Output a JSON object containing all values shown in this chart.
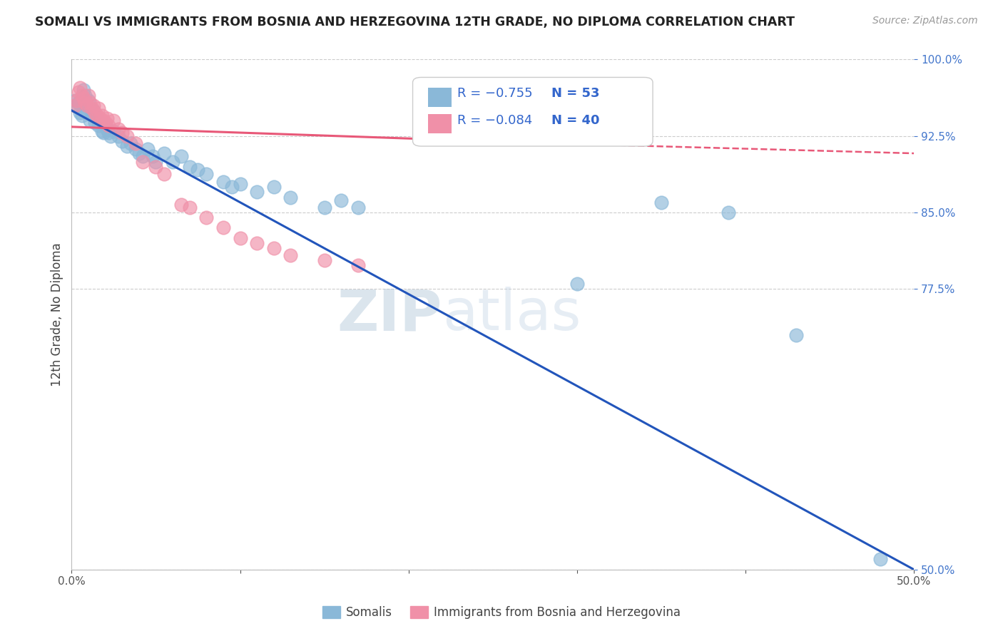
{
  "title": "SOMALI VS IMMIGRANTS FROM BOSNIA AND HERZEGOVINA 12TH GRADE, NO DIPLOMA CORRELATION CHART",
  "source": "Source: ZipAtlas.com",
  "ylabel": "12th Grade, No Diploma",
  "xlim": [
    0.0,
    0.5
  ],
  "ylim": [
    0.5,
    1.0
  ],
  "xticks": [
    0.0,
    0.1,
    0.2,
    0.3,
    0.4,
    0.5
  ],
  "yticks": [
    0.5,
    0.775,
    0.85,
    0.925,
    1.0
  ],
  "somali_line": [
    0.0,
    0.95,
    0.5,
    0.5
  ],
  "bosnia_line_solid": [
    0.0,
    0.934,
    0.28,
    0.918
  ],
  "bosnia_line_dash": [
    0.28,
    0.918,
    0.5,
    0.908
  ],
  "somali_scatter_x": [
    0.002,
    0.003,
    0.004,
    0.005,
    0.006,
    0.007,
    0.007,
    0.008,
    0.009,
    0.01,
    0.011,
    0.012,
    0.013,
    0.014,
    0.015,
    0.016,
    0.018,
    0.019,
    0.02,
    0.021,
    0.022,
    0.023,
    0.025,
    0.028,
    0.03,
    0.033,
    0.035,
    0.038,
    0.04,
    0.042,
    0.045,
    0.048,
    0.05,
    0.055,
    0.06,
    0.065,
    0.07,
    0.075,
    0.08,
    0.09,
    0.095,
    0.1,
    0.11,
    0.12,
    0.13,
    0.15,
    0.16,
    0.17,
    0.3,
    0.35,
    0.39,
    0.43,
    0.48
  ],
  "somali_scatter_y": [
    0.96,
    0.955,
    0.958,
    0.948,
    0.945,
    0.97,
    0.95,
    0.965,
    0.955,
    0.96,
    0.94,
    0.945,
    0.95,
    0.938,
    0.942,
    0.935,
    0.93,
    0.928,
    0.935,
    0.932,
    0.928,
    0.925,
    0.93,
    0.925,
    0.92,
    0.915,
    0.918,
    0.912,
    0.908,
    0.905,
    0.912,
    0.905,
    0.9,
    0.908,
    0.9,
    0.905,
    0.895,
    0.892,
    0.888,
    0.88,
    0.875,
    0.878,
    0.87,
    0.875,
    0.865,
    0.855,
    0.862,
    0.855,
    0.78,
    0.86,
    0.85,
    0.73,
    0.51
  ],
  "bosnia_scatter_x": [
    0.002,
    0.003,
    0.004,
    0.005,
    0.006,
    0.007,
    0.008,
    0.009,
    0.01,
    0.011,
    0.012,
    0.013,
    0.014,
    0.015,
    0.016,
    0.017,
    0.018,
    0.019,
    0.02,
    0.021,
    0.022,
    0.025,
    0.028,
    0.03,
    0.033,
    0.038,
    0.042,
    0.05,
    0.055,
    0.065,
    0.07,
    0.08,
    0.09,
    0.1,
    0.11,
    0.12,
    0.13,
    0.15,
    0.17,
    0.3
  ],
  "bosnia_scatter_y": [
    0.955,
    0.96,
    0.968,
    0.972,
    0.965,
    0.962,
    0.958,
    0.955,
    0.965,
    0.958,
    0.952,
    0.955,
    0.948,
    0.945,
    0.952,
    0.942,
    0.945,
    0.94,
    0.938,
    0.942,
    0.935,
    0.94,
    0.932,
    0.928,
    0.925,
    0.918,
    0.9,
    0.895,
    0.888,
    0.858,
    0.855,
    0.845,
    0.835,
    0.825,
    0.82,
    0.815,
    0.808,
    0.803,
    0.798,
    0.925
  ],
  "somali_color": "#8ab8d8",
  "bosnia_color": "#f090a8",
  "somali_line_color": "#2255bb",
  "bosnia_line_color": "#e85878",
  "watermark_zip": "ZIP",
  "watermark_atlas": "atlas",
  "background_color": "#ffffff",
  "grid_color": "#cccccc",
  "tick_color_y": "#4477cc",
  "tick_color_x": "#555555",
  "legend_r1": "R = −0.755",
  "legend_n1": "N = 53",
  "legend_r2": "R = −0.084",
  "legend_n2": "N = 40"
}
